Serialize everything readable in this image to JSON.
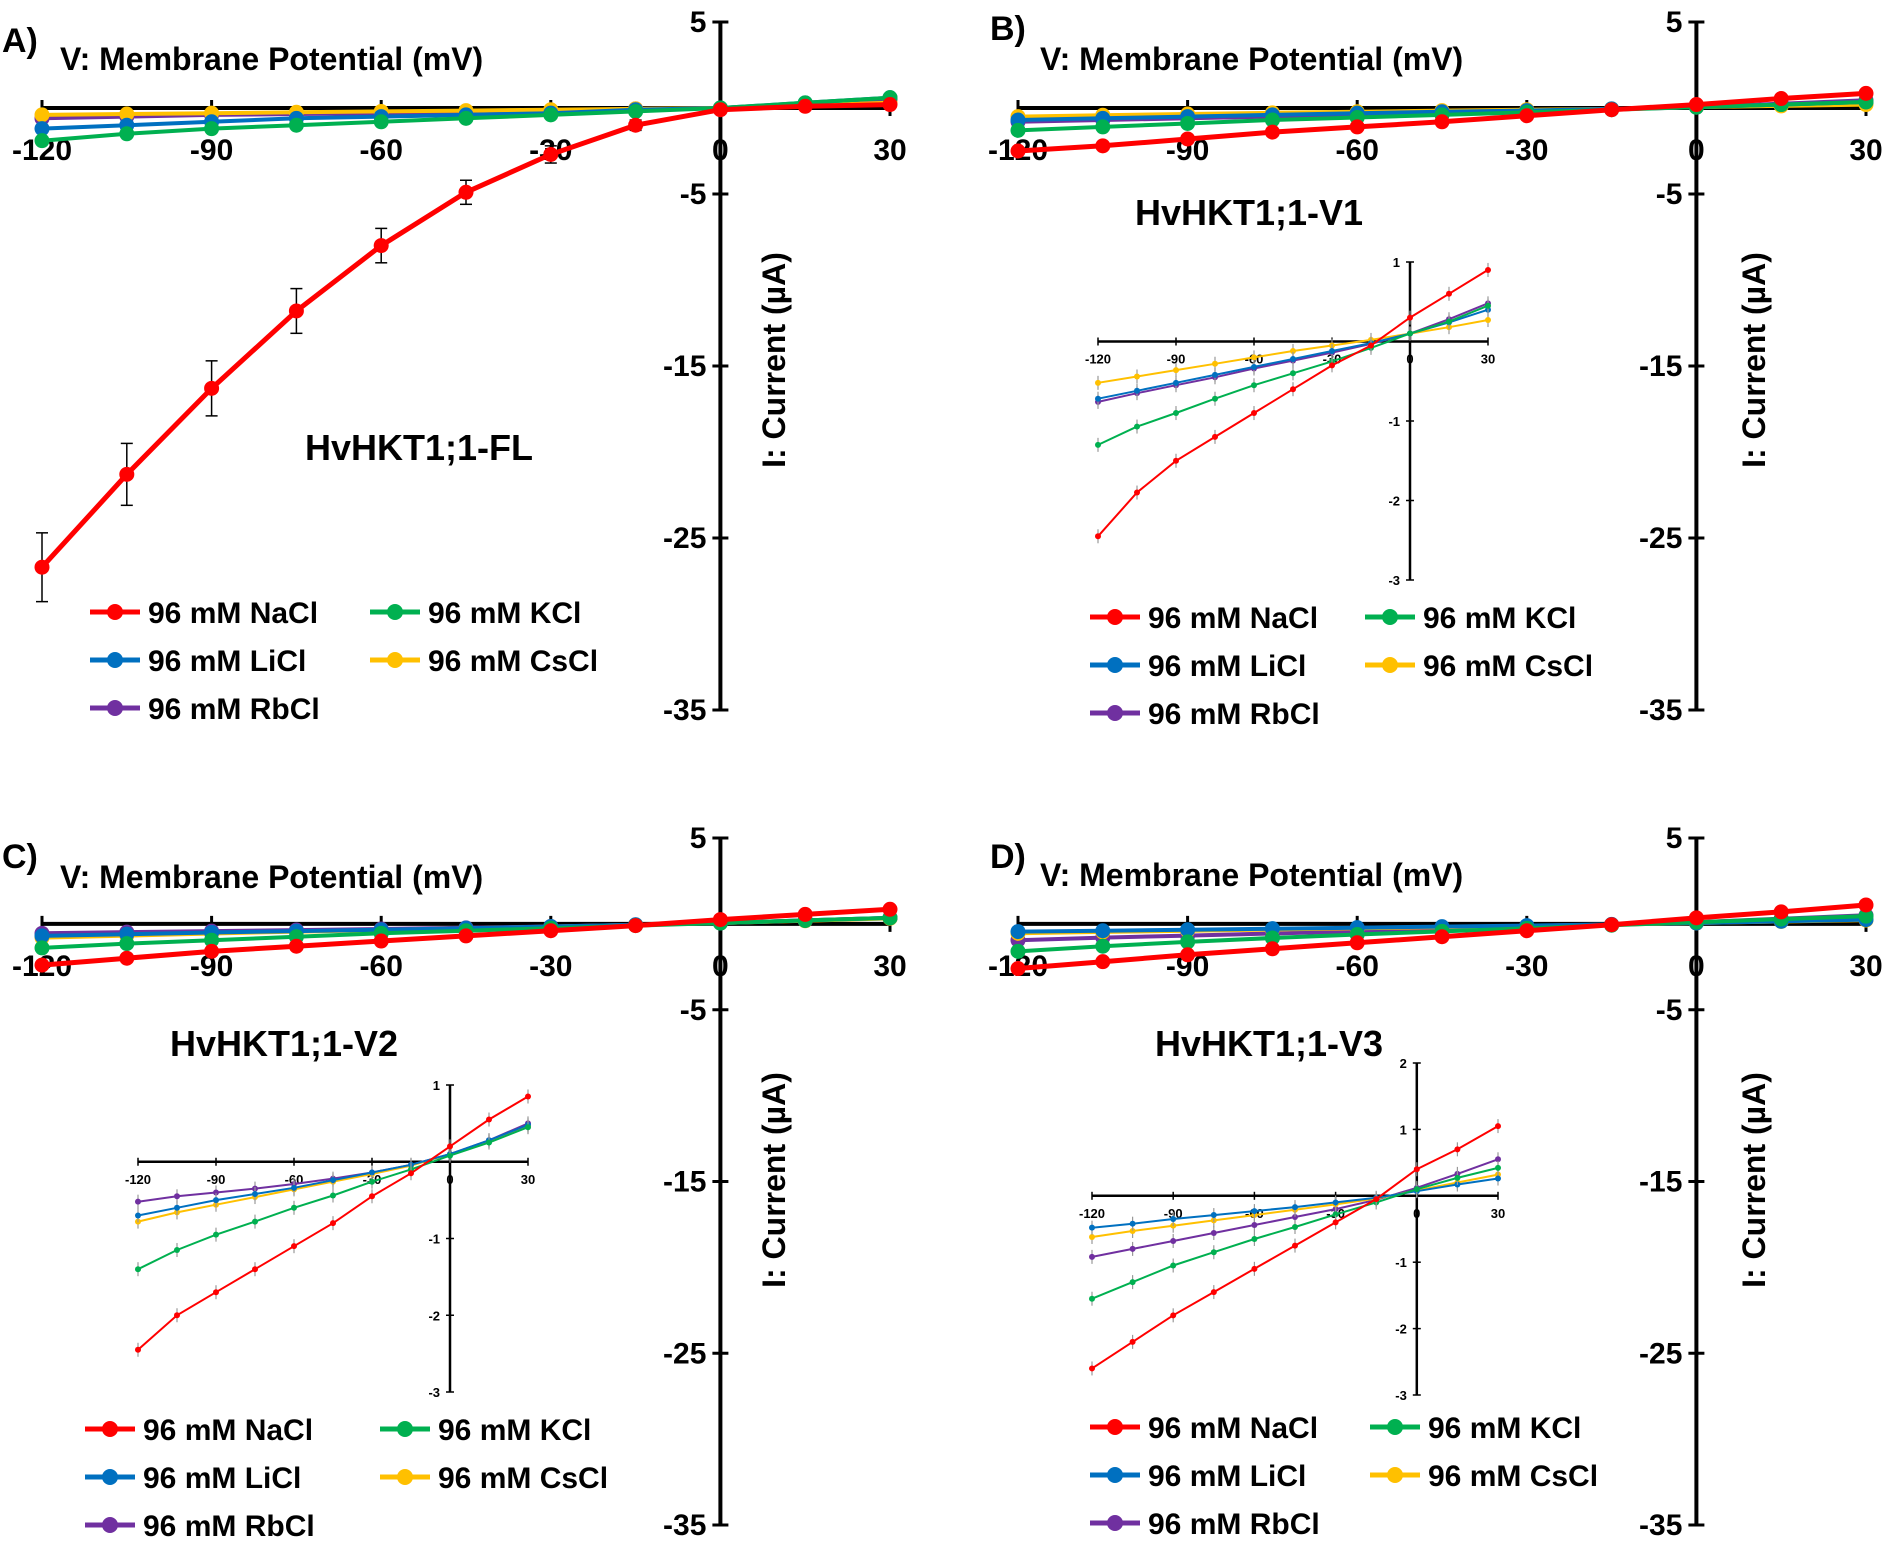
{
  "figure": {
    "colors": {
      "96 mM NaCl": "#ff0000",
      "96 mM KCl": "#00b050",
      "96 mM LiCl": "#0070c0",
      "96 mM CsCl": "#ffc000",
      "96 mM RbCl": "#7030a0"
    }
  },
  "chart_data": [
    {
      "type": "line",
      "panel_label": "A)",
      "title": "HvHKT1;1-FL",
      "xlabel": "V: Membrane Potential (mV)",
      "ylabel": "I: Current (µA)",
      "xlim": [
        -120,
        30
      ],
      "ylim": [
        -35,
        5
      ],
      "x_ticks": [
        "-120",
        "-90",
        "-60",
        "-30",
        "0",
        "30"
      ],
      "y_ticks": [
        "5",
        "-5",
        "-15",
        "-25",
        "-35"
      ],
      "x": [
        -120,
        -105,
        -90,
        -75,
        -60,
        -45,
        -30,
        -15,
        0,
        15,
        30
      ],
      "legend": [
        "96 mM NaCl",
        "96 mM KCl",
        "96 mM LiCl",
        "96 mM CsCl",
        "96 mM RbCl"
      ],
      "series": [
        {
          "name": "96 mM NaCl",
          "values": [
            -26.7,
            -21.3,
            -16.3,
            -11.8,
            -8.0,
            -4.9,
            -2.7,
            -1.0,
            -0.1,
            0.1,
            0.2
          ],
          "errors": [
            2.0,
            1.8,
            1.6,
            1.3,
            1.0,
            0.7,
            0.5,
            0.3,
            0.1,
            0.1,
            0.1
          ]
        },
        {
          "name": "96 mM KCl",
          "values": [
            -1.9,
            -1.5,
            -1.2,
            -1.0,
            -0.8,
            -0.6,
            -0.4,
            -0.2,
            0.0,
            0.3,
            0.6
          ]
        },
        {
          "name": "96 mM LiCl",
          "values": [
            -1.2,
            -1.0,
            -0.8,
            -0.6,
            -0.5,
            -0.4,
            -0.3,
            -0.1,
            0.0,
            0.3,
            0.6
          ]
        },
        {
          "name": "96 mM CsCl",
          "values": [
            -0.4,
            -0.35,
            -0.3,
            -0.25,
            -0.2,
            -0.15,
            -0.1,
            -0.05,
            0.0,
            0.15,
            0.3
          ]
        },
        {
          "name": "96 mM RbCl",
          "values": [
            -0.6,
            -0.5,
            -0.4,
            -0.35,
            -0.3,
            -0.2,
            -0.15,
            -0.05,
            0.0,
            0.25,
            0.5
          ]
        }
      ]
    },
    {
      "type": "line",
      "panel_label": "B)",
      "title": "HvHKT1;1-V1",
      "xlabel": "V: Membrane Potential (mV)",
      "ylabel": "I: Current (µA)",
      "xlim": [
        -120,
        30
      ],
      "ylim": [
        -35,
        5
      ],
      "x_ticks": [
        "-120",
        "-90",
        "-60",
        "-30",
        "0",
        "30"
      ],
      "y_ticks": [
        "5",
        "-5",
        "-15",
        "-25",
        "-35"
      ],
      "x": [
        -120,
        -105,
        -90,
        -75,
        -60,
        -45,
        -30,
        -15,
        0,
        15,
        30
      ],
      "legend": [
        "96 mM NaCl",
        "96 mM KCl",
        "96 mM LiCl",
        "96 mM CsCl",
        "96 mM RbCl"
      ],
      "series": [
        {
          "name": "96 mM NaCl",
          "values": [
            -2.5,
            -2.2,
            -1.8,
            -1.4,
            -1.1,
            -0.8,
            -0.45,
            -0.1,
            0.2,
            0.55,
            0.85
          ]
        },
        {
          "name": "96 mM KCl",
          "values": [
            -1.3,
            -1.1,
            -0.9,
            -0.7,
            -0.55,
            -0.4,
            -0.25,
            -0.1,
            0.05,
            0.2,
            0.35
          ]
        },
        {
          "name": "96 mM LiCl",
          "values": [
            -0.7,
            -0.6,
            -0.5,
            -0.4,
            -0.3,
            -0.22,
            -0.15,
            -0.05,
            0.05,
            0.2,
            0.35
          ]
        },
        {
          "name": "96 mM CsCl",
          "values": [
            -0.5,
            -0.42,
            -0.35,
            -0.28,
            -0.22,
            -0.15,
            -0.1,
            -0.05,
            0.05,
            0.12,
            0.2
          ]
        },
        {
          "name": "96 mM RbCl",
          "values": [
            -0.8,
            -0.7,
            -0.6,
            -0.5,
            -0.4,
            -0.3,
            -0.2,
            -0.08,
            0.05,
            0.25,
            0.45
          ]
        }
      ],
      "inset": {
        "xlim": [
          -120,
          30
        ],
        "ylim": [
          -3,
          1
        ],
        "x_ticks": [
          "-120",
          "-90",
          "-60",
          "-30",
          "0",
          "30"
        ],
        "y_ticks": [
          "1",
          "-1",
          "-2",
          "-3"
        ],
        "series": [
          {
            "name": "96 mM NaCl",
            "values": [
              -2.45,
              -1.9,
              -1.5,
              -1.2,
              -0.9,
              -0.6,
              -0.3,
              -0.05,
              0.3,
              0.6,
              0.9
            ]
          },
          {
            "name": "96 mM KCl",
            "values": [
              -1.3,
              -1.07,
              -0.9,
              -0.72,
              -0.55,
              -0.4,
              -0.25,
              -0.08,
              0.1,
              0.25,
              0.45
            ]
          },
          {
            "name": "96 mM LiCl",
            "values": [
              -0.72,
              -0.62,
              -0.52,
              -0.42,
              -0.32,
              -0.22,
              -0.12,
              -0.02,
              0.1,
              0.24,
              0.4
            ]
          },
          {
            "name": "96 mM CsCl",
            "values": [
              -0.52,
              -0.44,
              -0.36,
              -0.28,
              -0.2,
              -0.12,
              -0.05,
              0.02,
              0.1,
              0.18,
              0.27
            ]
          },
          {
            "name": "96 mM RbCl",
            "values": [
              -0.76,
              -0.65,
              -0.55,
              -0.45,
              -0.34,
              -0.24,
              -0.14,
              -0.03,
              0.1,
              0.28,
              0.48
            ]
          }
        ]
      }
    },
    {
      "type": "line",
      "panel_label": "C)",
      "title": "HvHKT1;1-V2",
      "xlabel": "V: Membrane Potential (mV)",
      "ylabel": "I: Current (µA)",
      "xlim": [
        -120,
        30
      ],
      "ylim": [
        -35,
        5
      ],
      "x_ticks": [
        "-120",
        "-90",
        "-60",
        "-30",
        "0",
        "30"
      ],
      "y_ticks": [
        "5",
        "-5",
        "-15",
        "-25",
        "-35"
      ],
      "x": [
        -120,
        -105,
        -90,
        -75,
        -60,
        -45,
        -30,
        -15,
        0,
        15,
        30
      ],
      "legend": [
        "96 mM NaCl",
        "96 mM KCl",
        "96 mM LiCl",
        "96 mM CsCl",
        "96 mM RbCl"
      ],
      "series": [
        {
          "name": "96 mM NaCl",
          "values": [
            -2.4,
            -2.0,
            -1.6,
            -1.3,
            -1.0,
            -0.7,
            -0.4,
            -0.1,
            0.25,
            0.55,
            0.85
          ]
        },
        {
          "name": "96 mM KCl",
          "values": [
            -1.4,
            -1.15,
            -0.95,
            -0.75,
            -0.55,
            -0.4,
            -0.25,
            -0.1,
            0.05,
            0.2,
            0.35
          ]
        },
        {
          "name": "96 mM LiCl",
          "values": [
            -0.7,
            -0.6,
            -0.5,
            -0.42,
            -0.34,
            -0.25,
            -0.15,
            -0.05,
            0.05,
            0.2,
            0.35
          ]
        },
        {
          "name": "96 mM CsCl",
          "values": [
            -0.8,
            -0.68,
            -0.56,
            -0.45,
            -0.36,
            -0.26,
            -0.16,
            -0.06,
            0.05,
            0.18,
            0.32
          ]
        },
        {
          "name": "96 mM RbCl",
          "values": [
            -0.55,
            -0.48,
            -0.42,
            -0.36,
            -0.3,
            -0.23,
            -0.15,
            -0.06,
            0.05,
            0.2,
            0.35
          ]
        }
      ],
      "inset": {
        "xlim": [
          -120,
          30
        ],
        "ylim": [
          -3,
          1
        ],
        "x_ticks": [
          "-120",
          "-90",
          "-60",
          "-30",
          "0",
          "30"
        ],
        "y_ticks": [
          "1",
          "-1",
          "-2",
          "-3"
        ],
        "series": [
          {
            "name": "96 mM NaCl",
            "values": [
              -2.45,
              -2.0,
              -1.7,
              -1.4,
              -1.1,
              -0.8,
              -0.45,
              -0.15,
              0.2,
              0.55,
              0.85
            ]
          },
          {
            "name": "96 mM KCl",
            "values": [
              -1.4,
              -1.15,
              -0.95,
              -0.78,
              -0.6,
              -0.44,
              -0.26,
              -0.1,
              0.08,
              0.25,
              0.45
            ]
          },
          {
            "name": "96 mM LiCl",
            "values": [
              -0.7,
              -0.6,
              -0.5,
              -0.42,
              -0.34,
              -0.24,
              -0.14,
              -0.04,
              0.1,
              0.28,
              0.48
            ]
          },
          {
            "name": "96 mM CsCl",
            "values": [
              -0.78,
              -0.66,
              -0.56,
              -0.46,
              -0.36,
              -0.26,
              -0.16,
              -0.05,
              0.1,
              0.27,
              0.46
            ]
          },
          {
            "name": "96 mM RbCl",
            "values": [
              -0.52,
              -0.45,
              -0.4,
              -0.35,
              -0.29,
              -0.22,
              -0.14,
              -0.04,
              0.1,
              0.28,
              0.5
            ]
          }
        ]
      }
    },
    {
      "type": "line",
      "panel_label": "D)",
      "title": "HvHKT1;1-V3",
      "xlabel": "V: Membrane Potential (mV)",
      "ylabel": "I: Current (µA)",
      "xlim": [
        -120,
        30
      ],
      "ylim": [
        -35,
        5
      ],
      "x_ticks": [
        "-120",
        "-90",
        "-60",
        "-30",
        "0",
        "30"
      ],
      "y_ticks": [
        "5",
        "-5",
        "-15",
        "-25",
        "-35"
      ],
      "x": [
        -120,
        -105,
        -90,
        -75,
        -60,
        -45,
        -30,
        -15,
        0,
        15,
        30
      ],
      "legend": [
        "96 mM NaCl",
        "96 mM KCl",
        "96 mM LiCl",
        "96 mM CsCl",
        "96 mM RbCl"
      ],
      "series": [
        {
          "name": "96 mM NaCl",
          "values": [
            -2.6,
            -2.2,
            -1.8,
            -1.45,
            -1.1,
            -0.75,
            -0.4,
            -0.05,
            0.35,
            0.7,
            1.1
          ]
        },
        {
          "name": "96 mM KCl",
          "values": [
            -1.6,
            -1.3,
            -1.05,
            -0.82,
            -0.62,
            -0.44,
            -0.26,
            -0.08,
            0.1,
            0.28,
            0.45
          ]
        },
        {
          "name": "96 mM LiCl",
          "values": [
            -0.45,
            -0.4,
            -0.34,
            -0.28,
            -0.22,
            -0.16,
            -0.1,
            -0.03,
            0.05,
            0.15,
            0.25
          ]
        },
        {
          "name": "96 mM CsCl",
          "values": [
            -0.55,
            -0.47,
            -0.4,
            -0.33,
            -0.26,
            -0.19,
            -0.12,
            -0.04,
            0.05,
            0.14,
            0.22
          ]
        },
        {
          "name": "96 mM RbCl",
          "values": [
            -0.95,
            -0.8,
            -0.68,
            -0.56,
            -0.44,
            -0.32,
            -0.2,
            -0.06,
            0.1,
            0.3,
            0.5
          ]
        }
      ],
      "inset": {
        "xlim": [
          -120,
          30
        ],
        "ylim": [
          -3,
          2
        ],
        "x_ticks": [
          "-120",
          "-90",
          "-60",
          "-30",
          "0",
          "30"
        ],
        "y_ticks": [
          "2",
          "1",
          "-1",
          "-2",
          "-3"
        ],
        "series": [
          {
            "name": "96 mM NaCl",
            "values": [
              -2.6,
              -2.2,
              -1.8,
              -1.45,
              -1.1,
              -0.75,
              -0.4,
              -0.05,
              0.4,
              0.7,
              1.05
            ]
          },
          {
            "name": "96 mM KCl",
            "values": [
              -1.55,
              -1.3,
              -1.05,
              -0.85,
              -0.65,
              -0.47,
              -0.28,
              -0.1,
              0.1,
              0.27,
              0.42
            ]
          },
          {
            "name": "96 mM LiCl",
            "values": [
              -0.48,
              -0.42,
              -0.35,
              -0.29,
              -0.23,
              -0.17,
              -0.1,
              -0.03,
              0.07,
              0.17,
              0.26
            ]
          },
          {
            "name": "96 mM CsCl",
            "values": [
              -0.62,
              -0.53,
              -0.45,
              -0.37,
              -0.29,
              -0.21,
              -0.13,
              -0.04,
              0.08,
              0.2,
              0.32
            ]
          },
          {
            "name": "96 mM RbCl",
            "values": [
              -0.92,
              -0.8,
              -0.68,
              -0.56,
              -0.44,
              -0.32,
              -0.2,
              -0.06,
              0.12,
              0.33,
              0.55
            ]
          }
        ]
      }
    }
  ]
}
